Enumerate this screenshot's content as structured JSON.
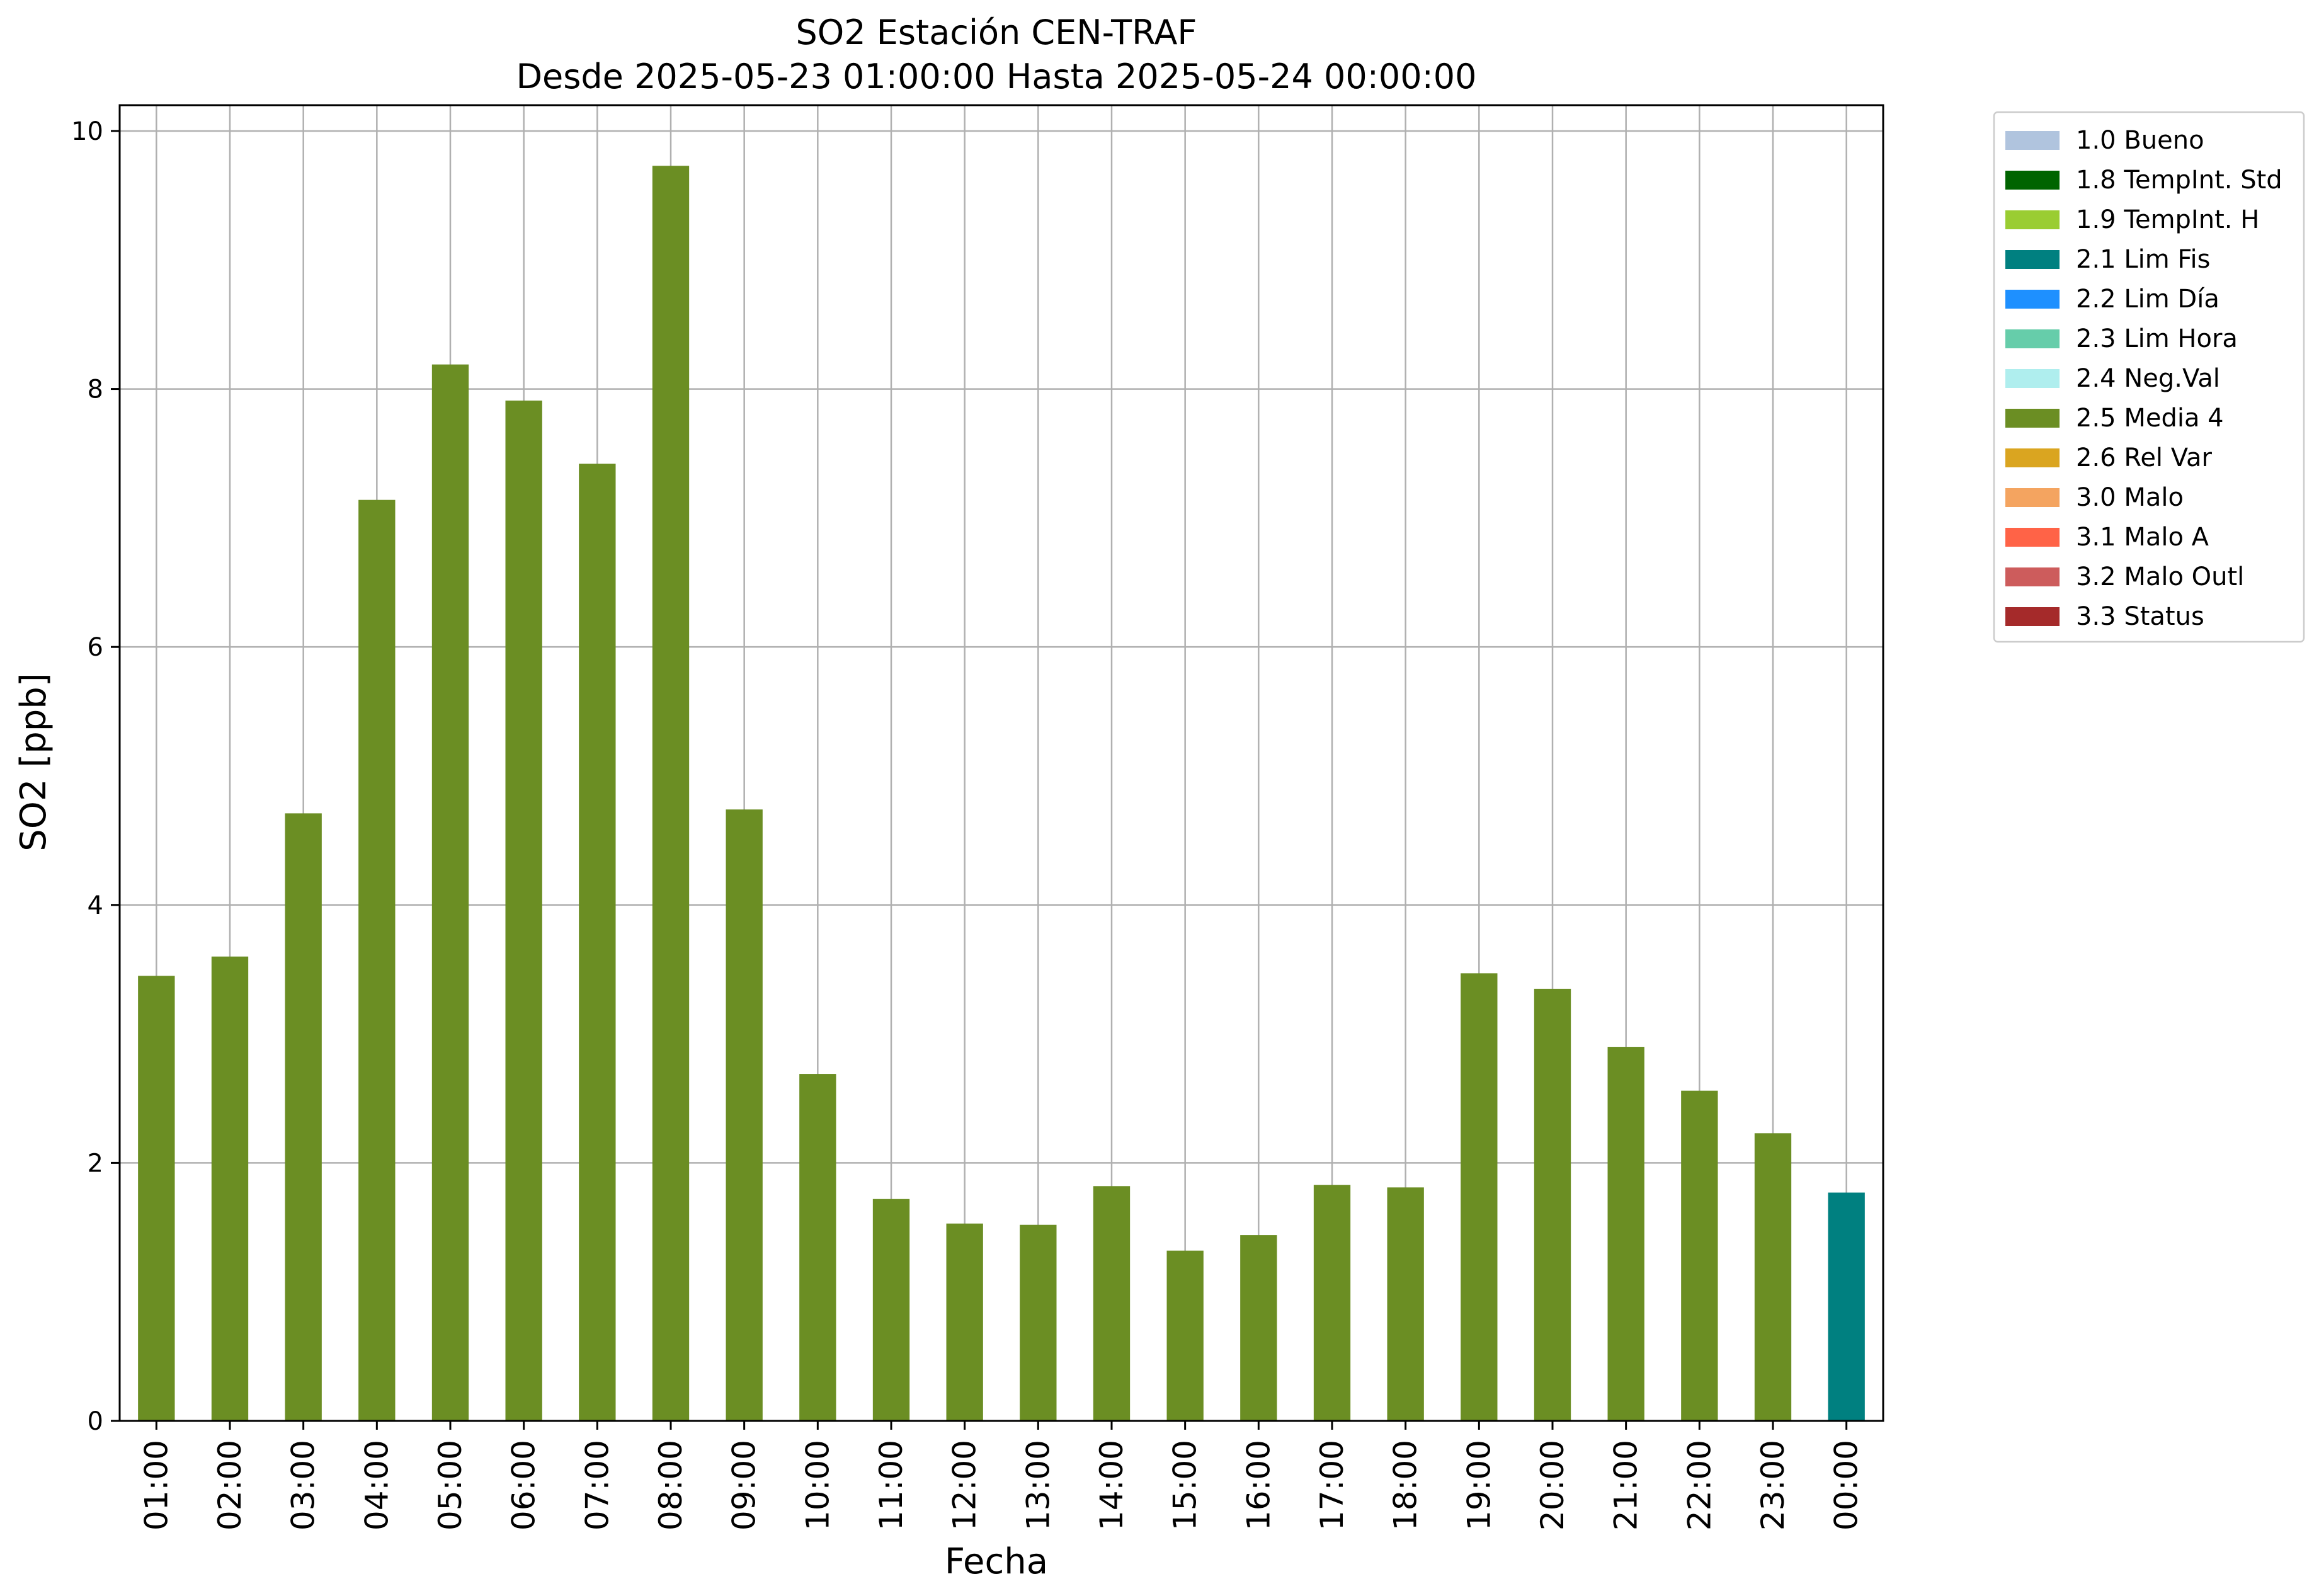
{
  "chart_data": {
    "type": "bar",
    "title": "SO2 Estación CEN-TRAF",
    "subtitle": "Desde 2025-05-23 01:00:00 Hasta 2025-05-24 00:00:00",
    "xlabel": "Fecha",
    "ylabel": "SO2 [ppb]",
    "ylim": [
      0,
      10.2
    ],
    "yticks": [
      0,
      2,
      4,
      6,
      8,
      10
    ],
    "grid": true,
    "legend_position": "outside-top-right",
    "categories": [
      "01:00",
      "02:00",
      "03:00",
      "04:00",
      "05:00",
      "06:00",
      "07:00",
      "08:00",
      "09:00",
      "10:00",
      "11:00",
      "12:00",
      "13:00",
      "14:00",
      "15:00",
      "16:00",
      "17:00",
      "18:00",
      "19:00",
      "20:00",
      "21:00",
      "22:00",
      "23:00",
      "00:00"
    ],
    "values": [
      3.45,
      3.6,
      4.71,
      7.14,
      8.19,
      7.91,
      7.42,
      9.73,
      4.74,
      2.69,
      1.72,
      1.53,
      1.52,
      1.82,
      1.32,
      1.44,
      1.83,
      1.81,
      3.47,
      3.35,
      2.9,
      2.56,
      2.23,
      1.77
    ],
    "bar_flags": [
      "2.5",
      "2.5",
      "2.5",
      "2.5",
      "2.5",
      "2.5",
      "2.5",
      "2.5",
      "2.5",
      "2.5",
      "2.5",
      "2.5",
      "2.5",
      "2.5",
      "2.5",
      "2.5",
      "2.5",
      "2.5",
      "2.5",
      "2.5",
      "2.5",
      "2.5",
      "2.5",
      "2.1"
    ],
    "legend": [
      {
        "code": "1.0",
        "label": "1.0 Bueno",
        "color": "#b0c4de"
      },
      {
        "code": "1.8",
        "label": "1.8 TempInt. Std",
        "color": "#006400"
      },
      {
        "code": "1.9",
        "label": "1.9 TempInt. H",
        "color": "#9acd32"
      },
      {
        "code": "2.1",
        "label": "2.1 Lim Fis",
        "color": "#008080"
      },
      {
        "code": "2.2",
        "label": "2.2 Lim Día",
        "color": "#1e90ff"
      },
      {
        "code": "2.3",
        "label": "2.3 Lim Hora",
        "color": "#66cdaa"
      },
      {
        "code": "2.4",
        "label": "2.4 Neg.Val",
        "color": "#afeeee"
      },
      {
        "code": "2.5",
        "label": "2.5 Media 4",
        "color": "#6b8e23"
      },
      {
        "code": "2.6",
        "label": "2.6 Rel Var",
        "color": "#daa520"
      },
      {
        "code": "3.0",
        "label": "3.0 Malo",
        "color": "#f4a460"
      },
      {
        "code": "3.1",
        "label": "3.1 Malo A",
        "color": "#ff6347"
      },
      {
        "code": "3.2",
        "label": "3.2 Malo Outl",
        "color": "#cd5c5c"
      },
      {
        "code": "3.3",
        "label": "3.3 Status",
        "color": "#a52a2a"
      }
    ]
  }
}
